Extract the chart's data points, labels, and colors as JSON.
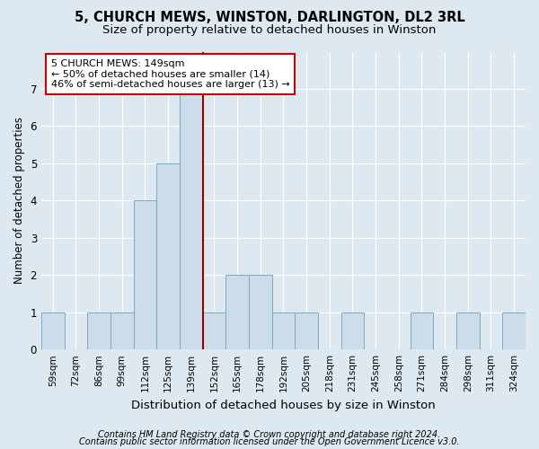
{
  "title1": "5, CHURCH MEWS, WINSTON, DARLINGTON, DL2 3RL",
  "title2": "Size of property relative to detached houses in Winston",
  "xlabel": "Distribution of detached houses by size in Winston",
  "ylabel": "Number of detached properties",
  "categories": [
    "59sqm",
    "72sqm",
    "86sqm",
    "99sqm",
    "112sqm",
    "125sqm",
    "139sqm",
    "152sqm",
    "165sqm",
    "178sqm",
    "192sqm",
    "205sqm",
    "218sqm",
    "231sqm",
    "245sqm",
    "258sqm",
    "271sqm",
    "284sqm",
    "298sqm",
    "311sqm",
    "324sqm"
  ],
  "values": [
    1,
    0,
    1,
    1,
    4,
    5,
    7,
    1,
    2,
    2,
    1,
    1,
    0,
    1,
    0,
    0,
    1,
    0,
    1,
    0,
    1
  ],
  "bar_color": "#ccdce8",
  "bar_edge_color": "#7aaac8",
  "vline_x_index": 6.5,
  "vline_color": "#990000",
  "annotation_text": "5 CHURCH MEWS: 149sqm\n← 50% of detached houses are smaller (14)\n46% of semi-detached houses are larger (13) →",
  "annotation_box_facecolor": "white",
  "annotation_box_edgecolor": "#cc0000",
  "ylim": [
    0,
    8
  ],
  "yticks": [
    0,
    1,
    2,
    3,
    4,
    5,
    6,
    7,
    8
  ],
  "background_color": "#dde8f0",
  "axes_background_color": "#dde8f0",
  "footer1": "Contains HM Land Registry data © Crown copyright and database right 2024.",
  "footer2": "Contains public sector information licensed under the Open Government Licence v3.0.",
  "title1_fontsize": 10.5,
  "title2_fontsize": 9.5,
  "xlabel_fontsize": 9.5,
  "ylabel_fontsize": 8.5,
  "tick_fontsize": 7.5,
  "annotation_fontsize": 8,
  "footer_fontsize": 7
}
